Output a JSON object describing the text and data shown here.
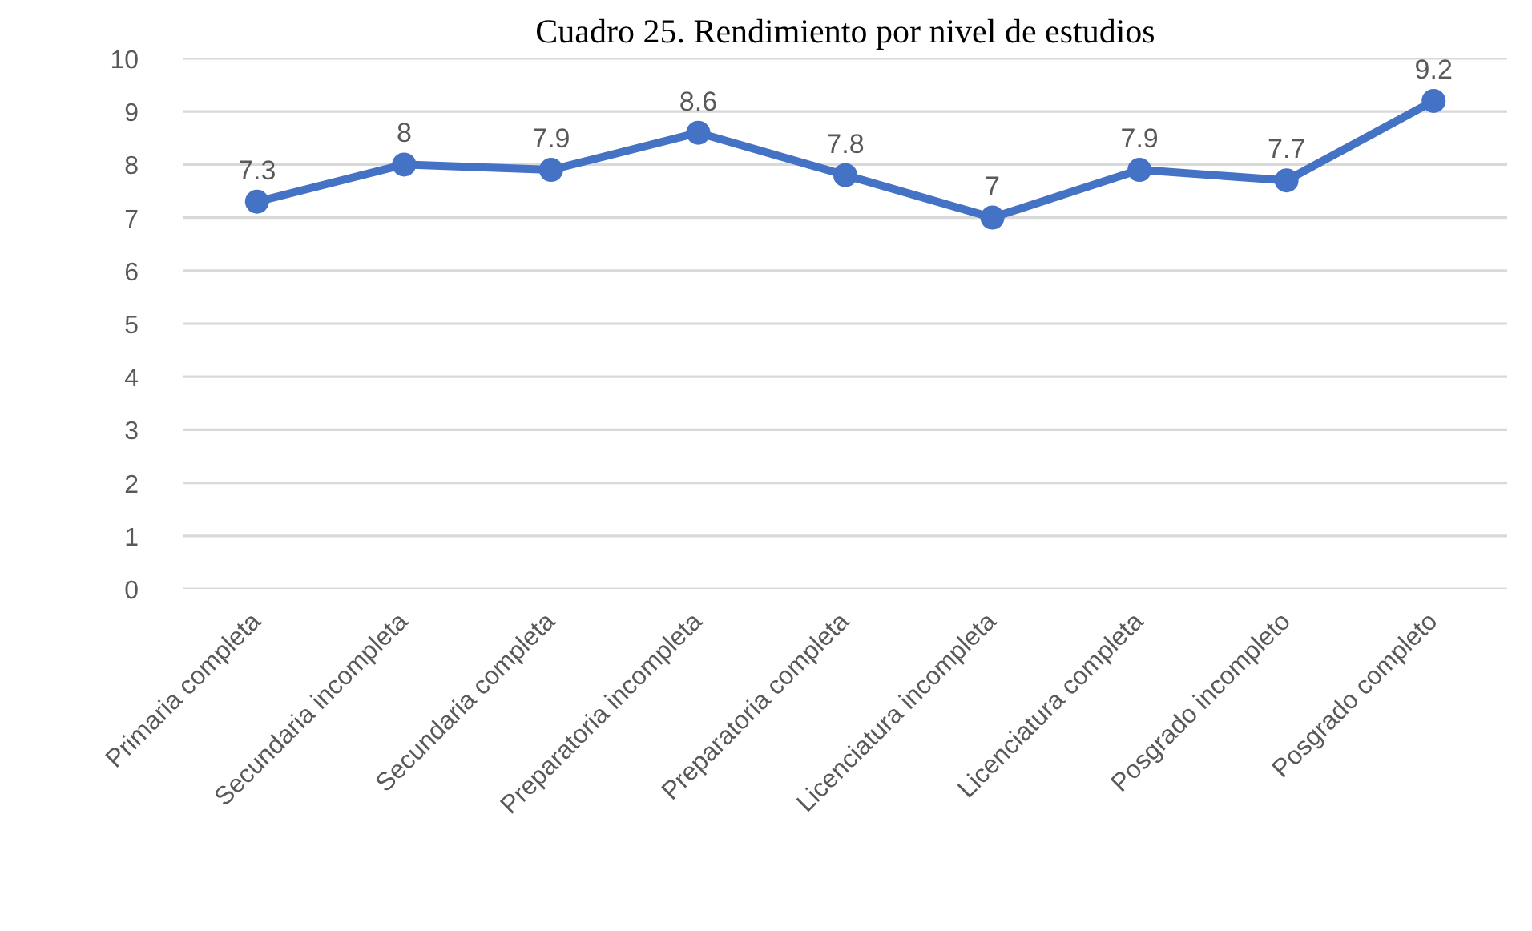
{
  "chart_data": {
    "type": "line",
    "title": "Cuadro 25. Rendimiento por nivel de estudios",
    "categories": [
      "Primaria completa",
      "Secundaria incompleta",
      "Secundaria completa",
      "Preparatoria incompleta",
      "Preparatoria completa",
      "Licenciatura incompleta",
      "Licenciatura completa",
      "Posgrado incompleto",
      "Posgrado completo"
    ],
    "series": [
      {
        "color": "#4472c4",
        "values": [
          7.3,
          8,
          7.9,
          8.6,
          7.8,
          7,
          7.9,
          7.7,
          9.2
        ]
      }
    ],
    "ylim": [
      0,
      10
    ],
    "yticks": [
      0,
      1,
      2,
      3,
      4,
      5,
      6,
      7,
      8,
      9,
      10
    ],
    "grid": "y",
    "marker": "circle",
    "line_style": "solid",
    "data_labels": true
  }
}
